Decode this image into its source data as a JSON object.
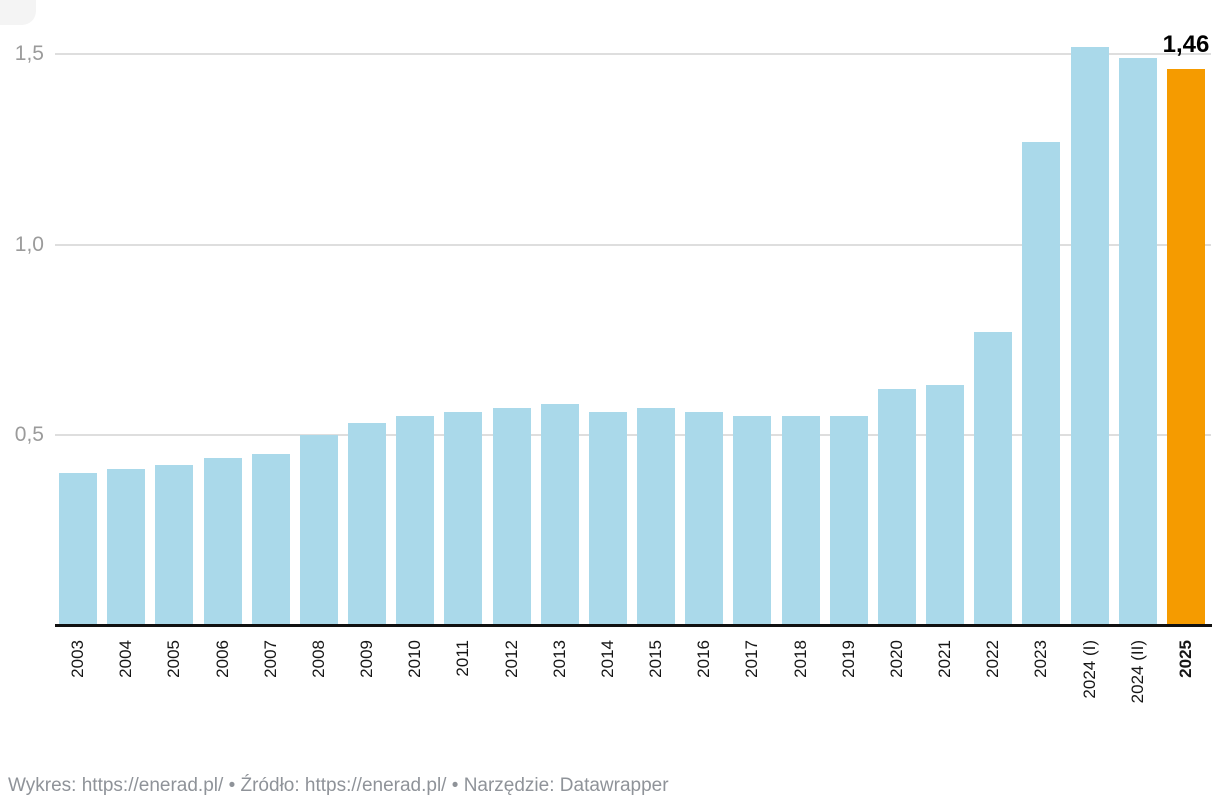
{
  "chart_data": {
    "type": "bar",
    "categories": [
      "2003",
      "2004",
      "2005",
      "2006",
      "2007",
      "2008",
      "2009",
      "2010",
      "2011",
      "2012",
      "2013",
      "2014",
      "2015",
      "2016",
      "2017",
      "2018",
      "2019",
      "2020",
      "2021",
      "2022",
      "2023",
      "2024 (I)",
      "2024 (II)",
      "2025"
    ],
    "values": [
      0.4,
      0.41,
      0.42,
      0.44,
      0.45,
      0.5,
      0.53,
      0.55,
      0.56,
      0.57,
      0.58,
      0.56,
      0.57,
      0.56,
      0.55,
      0.55,
      0.55,
      0.62,
      0.63,
      0.77,
      1.27,
      1.52,
      1.49,
      1.46
    ],
    "value_label": "1,46",
    "highlight": {
      "index": 23,
      "color": "#F59B00",
      "label_bold": true
    },
    "bar_color": "#AAD9EA",
    "y_ticks": [
      {
        "label": "0,5",
        "value": 0.5
      },
      {
        "label": "1,0",
        "value": 1.0
      },
      {
        "label": "1,5",
        "value": 1.5
      }
    ],
    "ylim": [
      0,
      1.58
    ],
    "grid": true,
    "legend": "none",
    "x_label_rotation": -90
  },
  "footer": {
    "chart_label": "Wykres:",
    "chart_url": "https://enerad.pl/",
    "separator": "•",
    "source_label": "Źródło:",
    "source_url": "https://enerad.pl/",
    "tool_label": "Narzędzie:",
    "tool_name": "Datawrapper"
  }
}
